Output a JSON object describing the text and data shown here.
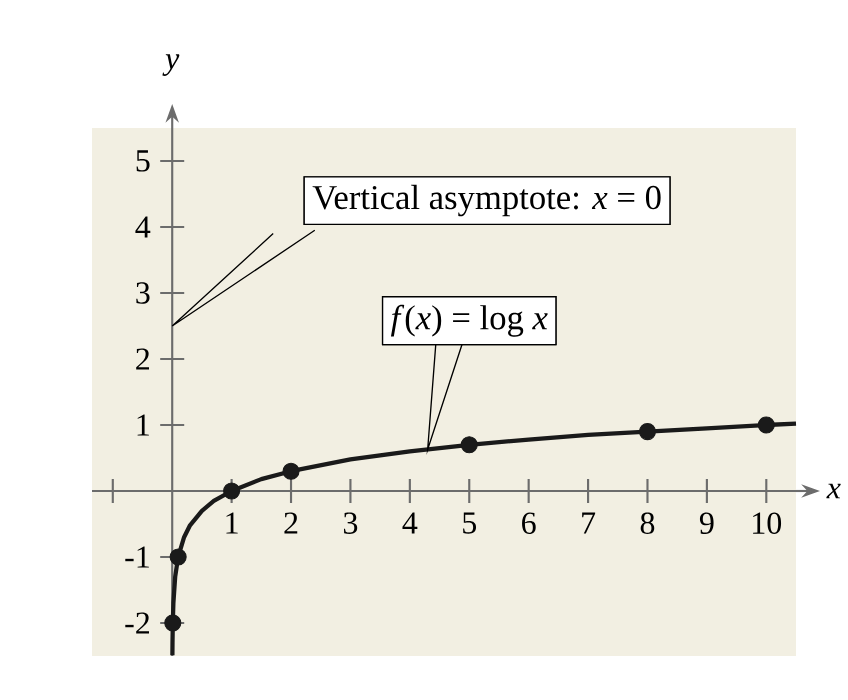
{
  "chart_data": {
    "type": "line",
    "xlabel": "x",
    "ylabel": "y",
    "xlim": [
      -1.35,
      10.5
    ],
    "ylim": [
      -2.5,
      5.5
    ],
    "xticks": [
      {
        "value": -1,
        "label": null
      },
      1,
      2,
      3,
      4,
      5,
      6,
      7,
      8,
      9,
      10
    ],
    "yticks": [
      -2,
      -1,
      1,
      2,
      3,
      4,
      5
    ],
    "grid": false,
    "series": [
      {
        "color": "#1a1a1a",
        "x": [
          0.0032,
          0.005,
          0.01,
          0.02,
          0.05,
          0.1,
          0.2,
          0.3,
          0.5,
          0.7,
          1,
          1.5,
          2,
          3,
          4,
          5,
          6,
          7,
          8,
          9,
          10,
          10.5
        ],
        "values": [
          -2.49,
          -2.3,
          -2,
          -1.7,
          -1.3,
          -1,
          -0.7,
          -0.52,
          -0.3,
          -0.15,
          0,
          0.18,
          0.3,
          0.48,
          0.6,
          0.7,
          0.78,
          0.85,
          0.9,
          0.95,
          1,
          1.02
        ]
      },
      {
        "type": "scatter",
        "marker": "circle",
        "color": "#1a1a1a",
        "x": [
          0.01,
          0.1,
          1,
          2,
          5,
          8,
          10
        ],
        "values": [
          -2,
          -1,
          0,
          0.3,
          0.7,
          0.9,
          1
        ]
      }
    ],
    "annotations": [
      "Vertical asymptote: *x* = 0",
      "*f*(*x*) = log *x*"
    ]
  }
}
